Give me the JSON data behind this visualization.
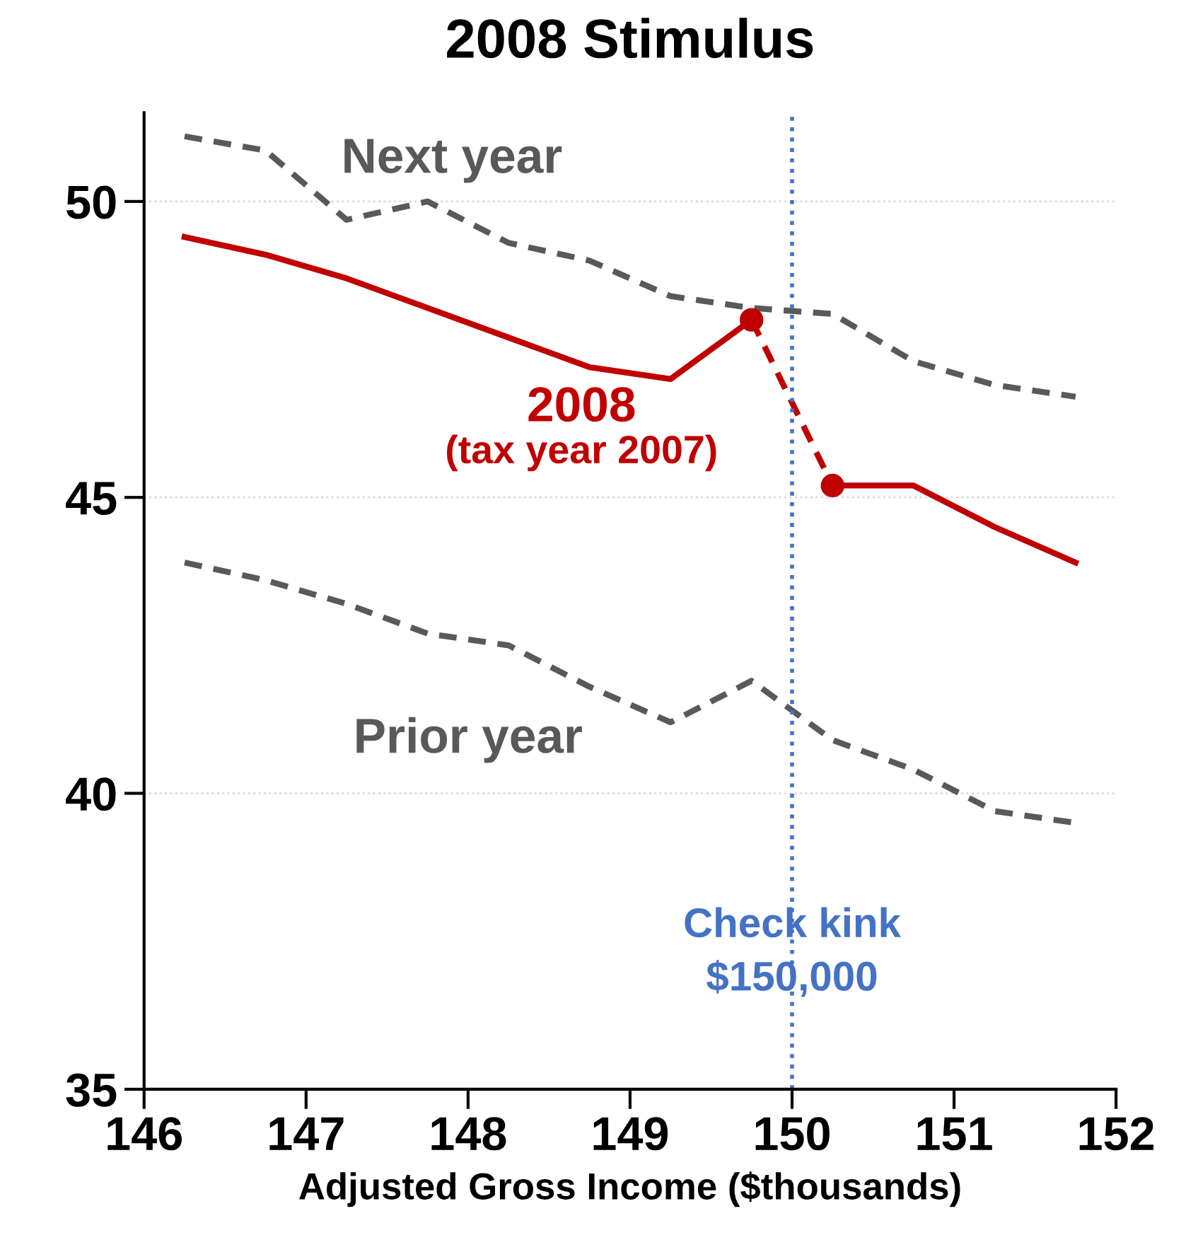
{
  "chart_data": {
    "type": "line",
    "title": "2008 Stimulus",
    "xlabel": "Adjusted Gross Income ($thousands)",
    "xlim": [
      146,
      152
    ],
    "xticks": [
      146,
      147,
      148,
      149,
      150,
      151,
      152
    ],
    "ylim": [
      35,
      51.5
    ],
    "yticks": [
      35,
      40,
      45,
      50
    ],
    "grid": "y",
    "legend": false,
    "series": [
      {
        "name": "Next year",
        "color": "#595959",
        "line_style": "dashed",
        "x": [
          146.25,
          146.75,
          147.25,
          147.75,
          148.25,
          148.75,
          149.25,
          149.75,
          150.25,
          150.75,
          151.25,
          151.75
        ],
        "values": [
          51.1,
          50.86,
          49.69,
          50.0,
          49.3,
          49.0,
          48.4,
          48.2,
          48.1,
          47.3,
          46.9,
          46.7
        ]
      },
      {
        "name": "2008\n(tax year 2007)",
        "color": "#c00000",
        "line_style": "solid",
        "x": [
          146.25,
          146.75,
          147.25,
          147.75,
          148.25,
          148.75,
          149.25,
          149.75
        ],
        "values": [
          49.4,
          49.1,
          48.7,
          48.2,
          47.7,
          47.2,
          47.0,
          48.0
        ]
      },
      {
        "color": "#c00000",
        "line_style": "dashed",
        "marker": "circle",
        "x": [
          149.75,
          150.25
        ],
        "values": [
          48.0,
          45.2
        ]
      },
      {
        "color": "#c00000",
        "line_style": "solid",
        "x": [
          150.25,
          150.75,
          151.25,
          151.75
        ],
        "values": [
          45.2,
          45.2,
          44.5,
          43.9
        ]
      },
      {
        "name": "Prior year",
        "color": "#595959",
        "line_style": "dashed",
        "x": [
          146.25,
          146.75,
          147.25,
          147.75,
          148.25,
          148.75,
          149.25,
          149.75,
          150.25,
          150.75,
          151.25,
          151.75
        ],
        "values": [
          43.9,
          43.6,
          43.2,
          42.7,
          42.5,
          41.8,
          41.2,
          41.9,
          40.9,
          40.4,
          39.7,
          39.5
        ]
      }
    ],
    "ref_lines": [
      {
        "axis": "x",
        "value": 150,
        "label": "Check kink\n$150,000",
        "color": "#4472c4",
        "line_style": "dotted"
      }
    ]
  }
}
